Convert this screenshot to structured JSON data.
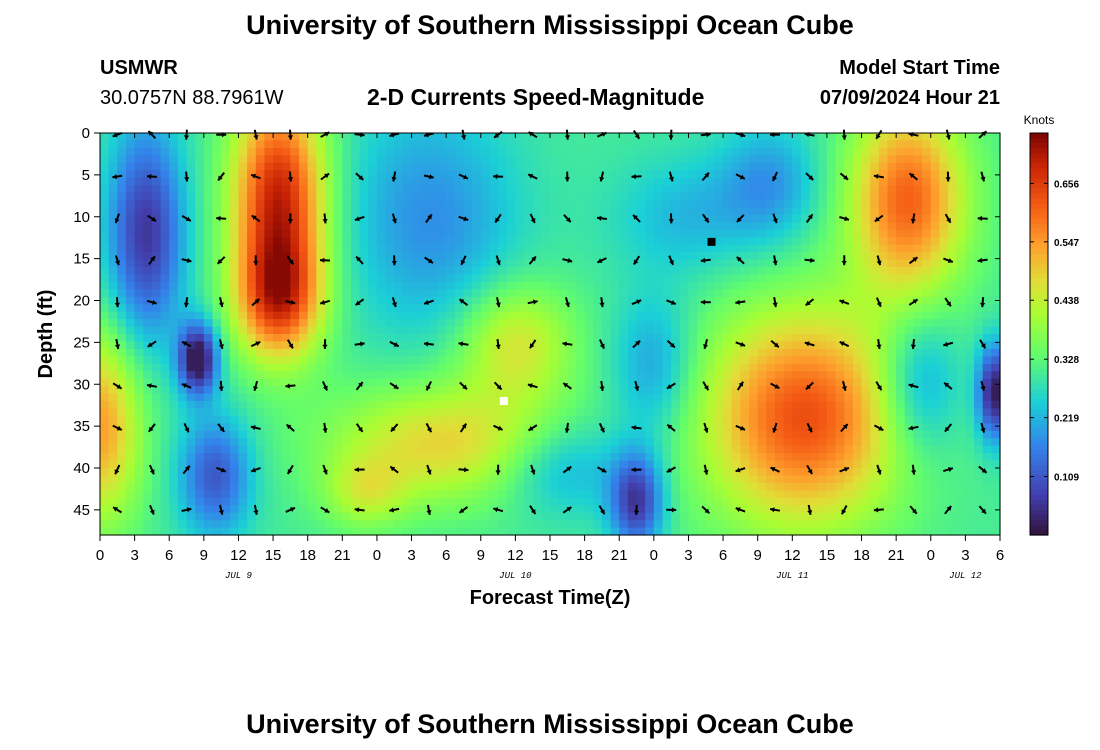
{
  "header": {
    "title": "University of Southern Mississippi Ocean Cube",
    "station": "USMWR",
    "coords": "30.0757N  88.7961W",
    "subtitle": "2-D Currents Speed-Magnitude",
    "start_label": "Model Start Time",
    "start_value": "07/09/2024 Hour 21"
  },
  "footer": {
    "title": "University of Southern Mississippi Ocean Cube"
  },
  "chart_data": {
    "type": "heatmap",
    "title": "2-D Currents Speed-Magnitude",
    "xlabel": "Forecast Time(Z)",
    "ylabel": "Depth (ft)",
    "xlim": [
      0,
      78
    ],
    "ylim": [
      48,
      0
    ],
    "x_ticks": [
      0,
      3,
      6,
      9,
      12,
      15,
      18,
      21,
      24,
      27,
      30,
      33,
      36,
      39,
      42,
      45,
      48,
      51,
      54,
      57,
      60,
      63,
      66,
      69,
      72,
      75,
      78
    ],
    "x_tick_labels": [
      "0",
      "3",
      "6",
      "9",
      "12",
      "15",
      "18",
      "21",
      "0",
      "3",
      "6",
      "9",
      "12",
      "15",
      "18",
      "21",
      "0",
      "3",
      "6",
      "9",
      "12",
      "15",
      "18",
      "21",
      "0",
      "3",
      "6"
    ],
    "y_ticks": [
      0,
      5,
      10,
      15,
      20,
      25,
      30,
      35,
      40,
      45
    ],
    "y_tick_labels": [
      "0",
      "5",
      "10",
      "15",
      "20",
      "25",
      "30",
      "35",
      "40",
      "45"
    ],
    "day_labels": [
      {
        "x": 12,
        "label": "JUL 9"
      },
      {
        "x": 36,
        "label": "JUL 10"
      },
      {
        "x": 60,
        "label": "JUL 11"
      },
      {
        "x": 75,
        "label": "JUL 12"
      }
    ],
    "colorbar": {
      "title": "Knots",
      "min": 0.0,
      "max": 0.75,
      "ticks": [
        0.109,
        0.219,
        0.328,
        0.438,
        0.547,
        0.656
      ],
      "tick_labels": [
        "0.109",
        "0.219",
        "0.328",
        "0.438",
        "0.547",
        "0.656"
      ]
    },
    "blobs": [
      {
        "x": 15.5,
        "y": 8,
        "sx": 2.8,
        "sy": 9,
        "v": 0.66
      },
      {
        "x": 15.5,
        "y": 20,
        "sx": 2.6,
        "sy": 5,
        "v": 0.55
      },
      {
        "x": 36,
        "y": 25,
        "sx": 3.5,
        "sy": 5,
        "v": 0.45
      },
      {
        "x": 30,
        "y": 37,
        "sx": 7,
        "sy": 5,
        "v": 0.47
      },
      {
        "x": 23,
        "y": 43,
        "sx": 2.5,
        "sy": 3,
        "v": 0.4
      },
      {
        "x": 40,
        "y": 40,
        "sx": 4,
        "sy": 4,
        "v": 0.2
      },
      {
        "x": 33,
        "y": 13,
        "sx": 4,
        "sy": 10,
        "v": 0.28
      },
      {
        "x": 28,
        "y": 10,
        "sx": 5,
        "sy": 10,
        "v": 0.2
      },
      {
        "x": 61,
        "y": 34,
        "sx": 6,
        "sy": 9,
        "v": 0.6
      },
      {
        "x": 70,
        "y": 8,
        "sx": 3.5,
        "sy": 8,
        "v": 0.58
      },
      {
        "x": 71,
        "y": 30,
        "sx": 2.5,
        "sy": 6,
        "v": 0.18
      },
      {
        "x": 0,
        "y": 35,
        "sx": 2.5,
        "sy": 8,
        "v": 0.52
      },
      {
        "x": 58,
        "y": 6,
        "sx": 3,
        "sy": 5,
        "v": 0.2
      },
      {
        "x": 48,
        "y": 28,
        "sx": 2.5,
        "sy": 6,
        "v": 0.2
      },
      {
        "x": 78,
        "y": 20,
        "sx": 1.3,
        "sy": 14,
        "v": 0.3
      }
    ],
    "lows": [
      {
        "x": 4,
        "y": 12,
        "sx": 2.3,
        "sy": 9,
        "v": 0.15
      },
      {
        "x": 10,
        "y": 41,
        "sx": 2.2,
        "sy": 5,
        "v": 0.18
      },
      {
        "x": 8.5,
        "y": 27,
        "sx": 1.2,
        "sy": 3,
        "v": 0.1
      },
      {
        "x": 51,
        "y": 10,
        "sx": 4.5,
        "sy": 5,
        "v": 0.25
      },
      {
        "x": 46.5,
        "y": 44,
        "sx": 1.6,
        "sy": 4,
        "v": 0.15
      },
      {
        "x": 77.5,
        "y": 31,
        "sx": 1,
        "sy": 4,
        "v": 0.12
      }
    ],
    "markers": [
      {
        "x": 35,
        "y": 32,
        "color": "#ffffff"
      },
      {
        "x": 53,
        "y": 13,
        "color": "#000000"
      }
    ]
  }
}
